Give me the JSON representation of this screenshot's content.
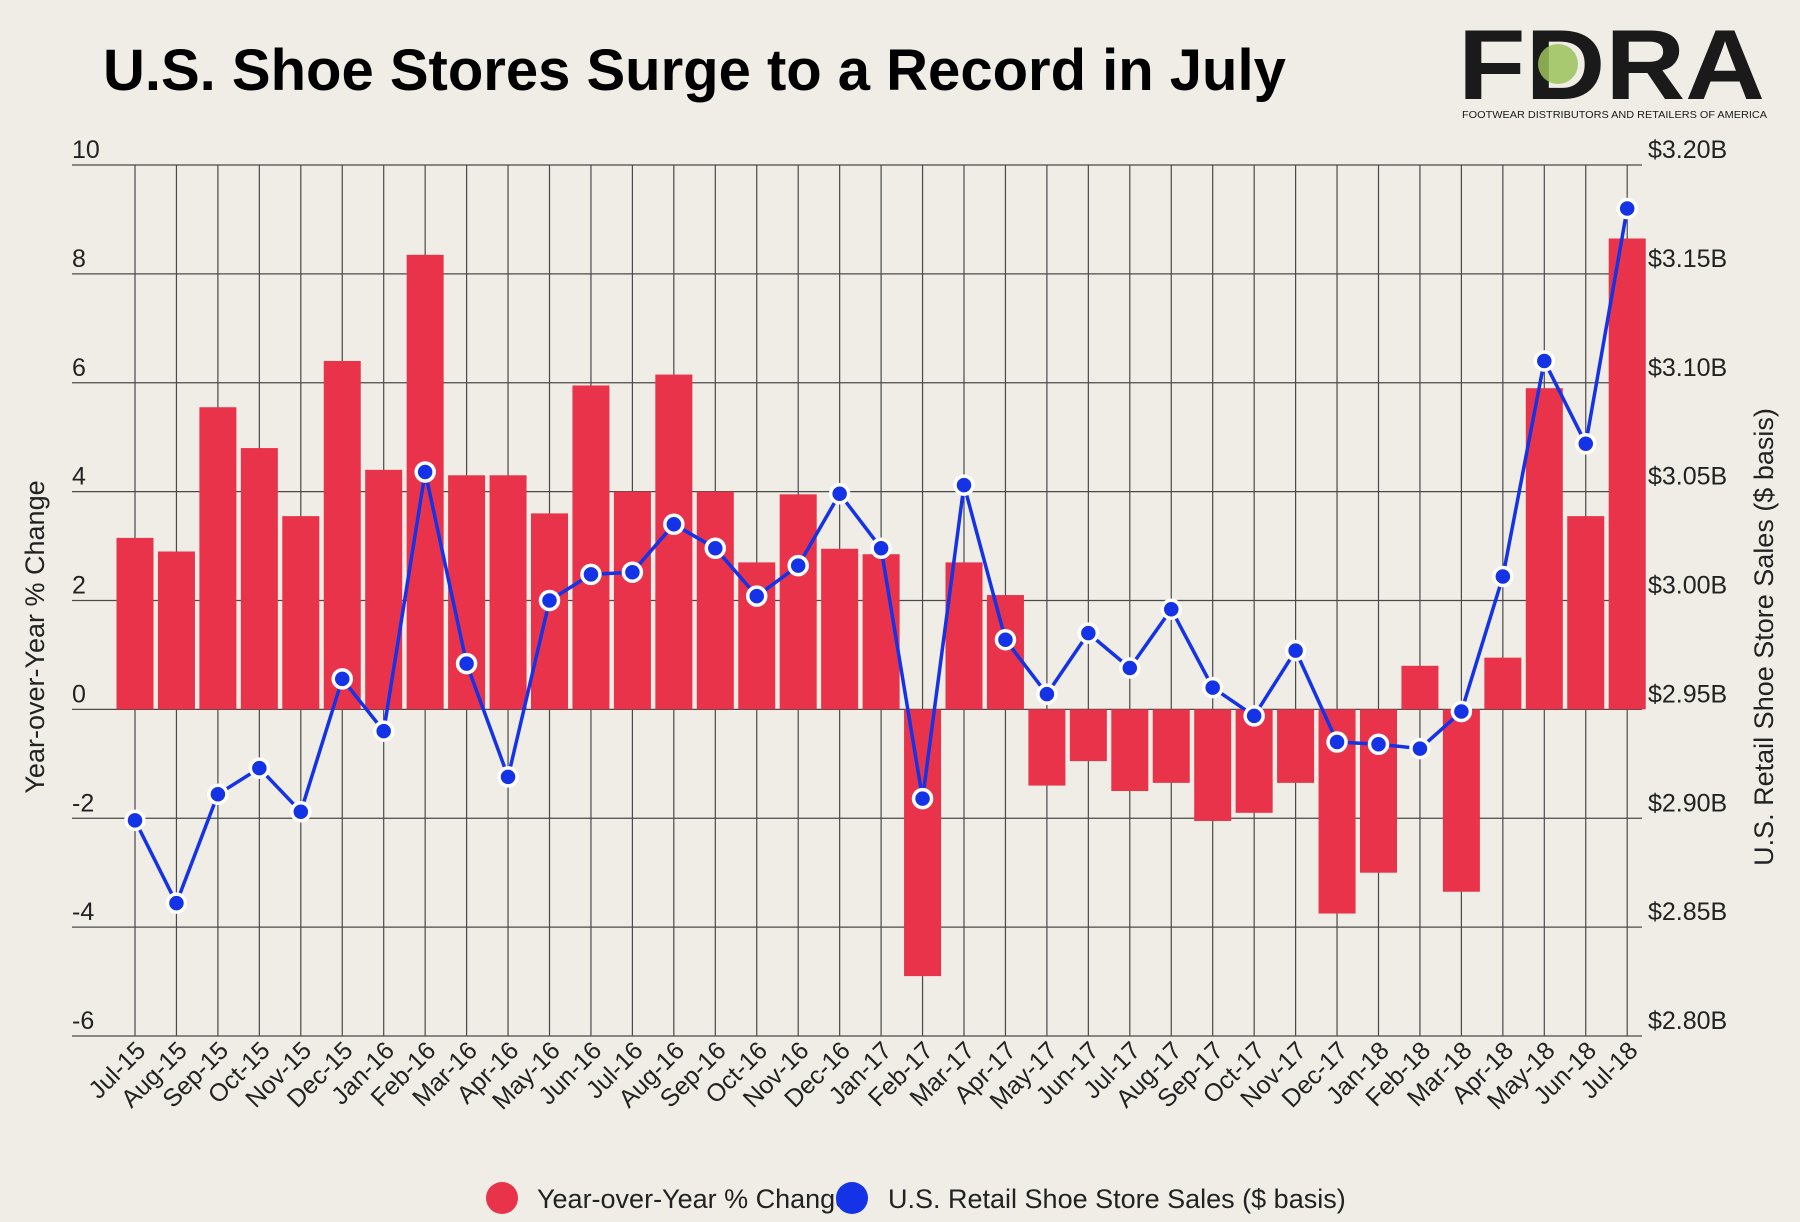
{
  "header": {
    "title": "U.S. Shoe Stores Surge to a Record in July",
    "logo": "FDRA",
    "logo_subtitle": "FOOTWEAR DISTRIBUTORS AND RETAILERS OF AMERICA"
  },
  "colors": {
    "bar": "#e8334a",
    "line": "#1432e6",
    "background": "#efede5",
    "grid": "#4a4a4a"
  },
  "chart_data": {
    "type": "bar",
    "title": "U.S. Shoe Stores Surge to a Record in July",
    "categories": [
      "Jul-15",
      "Aug-15",
      "Sep-15",
      "Oct-15",
      "Nov-15",
      "Dec-15",
      "Jan-16",
      "Feb-16",
      "Mar-16",
      "Apr-16",
      "May-16",
      "Jun-16",
      "Jul-16",
      "Aug-16",
      "Sep-16",
      "Oct-16",
      "Nov-16",
      "Dec-16",
      "Jan-17",
      "Feb-17",
      "Mar-17",
      "Apr-17",
      "May-17",
      "Jun-17",
      "Jul-17",
      "Aug-17",
      "Sep-17",
      "Oct-17",
      "Nov-17",
      "Dec-17",
      "Jan-18",
      "Feb-18",
      "Mar-18",
      "Apr-18",
      "May-18",
      "Jun-18",
      "Jul-18"
    ],
    "series": [
      {
        "name": "Year-over-Year % Change",
        "type": "bar",
        "axis": "left",
        "values": [
          3.15,
          2.9,
          5.55,
          4.8,
          3.55,
          6.4,
          4.4,
          8.35,
          4.3,
          4.3,
          3.6,
          5.95,
          4.0,
          6.15,
          4.0,
          2.7,
          3.95,
          2.95,
          2.85,
          -4.9,
          2.7,
          2.1,
          -1.4,
          -0.95,
          -1.5,
          -1.35,
          -2.05,
          -1.9,
          -1.35,
          -3.75,
          -3.0,
          0.8,
          -3.35,
          0.95,
          5.9,
          3.55,
          8.65
        ]
      },
      {
        "name": "U.S. Retail Shoe Store Sales ($ basis)",
        "type": "line",
        "axis": "right",
        "values_billions": [
          2.899,
          2.861,
          2.911,
          2.923,
          2.903,
          2.964,
          2.94,
          3.059,
          2.971,
          2.919,
          3.0,
          3.012,
          3.013,
          3.035,
          3.024,
          3.002,
          3.016,
          3.049,
          3.024,
          2.909,
          3.053,
          2.982,
          2.957,
          2.985,
          2.969,
          2.996,
          2.96,
          2.947,
          2.977,
          2.935,
          2.934,
          2.932,
          2.949,
          3.011,
          3.11,
          3.072,
          3.18
        ]
      }
    ],
    "y_left": {
      "label": "Year-over-Year % Change",
      "range": [
        -6,
        10
      ],
      "ticks": [
        "10",
        "8",
        "6",
        "4",
        "2",
        "0",
        "-2",
        "-4",
        "-6"
      ]
    },
    "y_right": {
      "label": "U.S. Retail Shoe Store Sales ($ basis)",
      "range": [
        2.8,
        3.2
      ],
      "ticks": [
        "$3.20B",
        "$3.15B",
        "$3.10B",
        "$3.05B",
        "$3.00B",
        "$2.95B",
        "$2.90B",
        "$2.85B",
        "$2.80B"
      ]
    },
    "grid": true,
    "legend_position": "bottom"
  }
}
